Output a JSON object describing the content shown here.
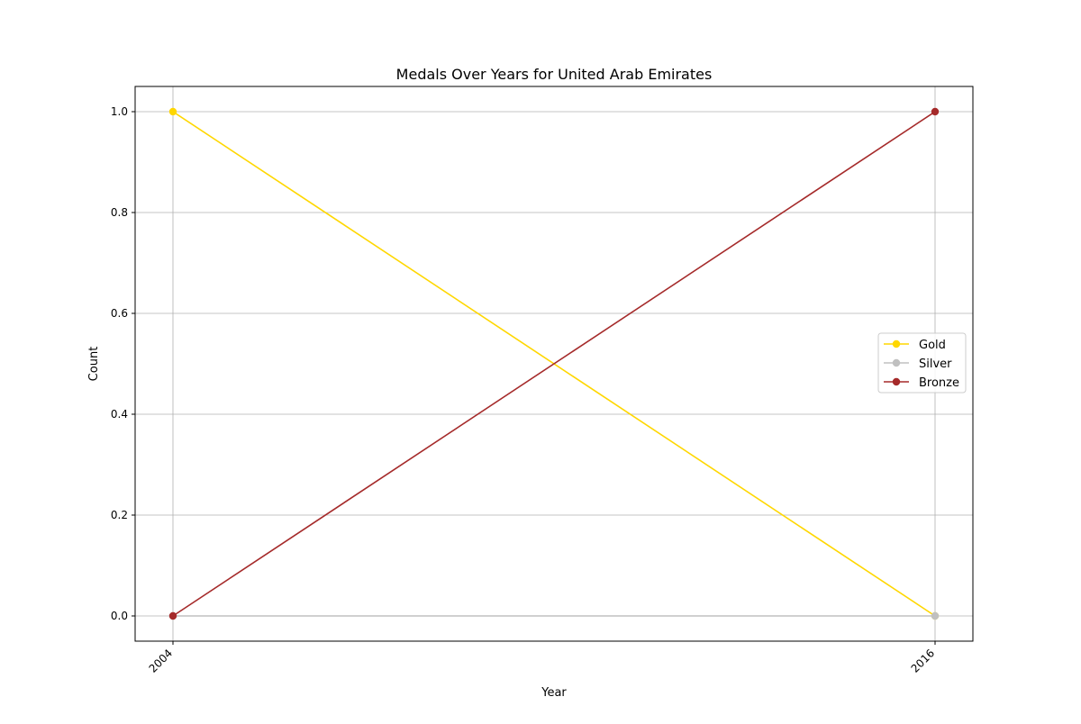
{
  "chart_data": {
    "type": "line",
    "title": "Medals Over Years for United Arab Emirates",
    "xlabel": "Year",
    "ylabel": "Count",
    "x": [
      "2004",
      "2016"
    ],
    "ylim": [
      -0.05,
      1.05
    ],
    "yticks": [
      "0.0",
      "0.2",
      "0.4",
      "0.6",
      "0.8",
      "1.0"
    ],
    "grid": true,
    "legend_position": "center-right",
    "series": [
      {
        "name": "Gold",
        "color": "#ffd700",
        "values": [
          1,
          0
        ]
      },
      {
        "name": "Silver",
        "color": "#c0c0c0",
        "values": [
          0,
          0
        ]
      },
      {
        "name": "Bronze",
        "color": "#a52a2a",
        "values": [
          0,
          1
        ]
      }
    ]
  }
}
